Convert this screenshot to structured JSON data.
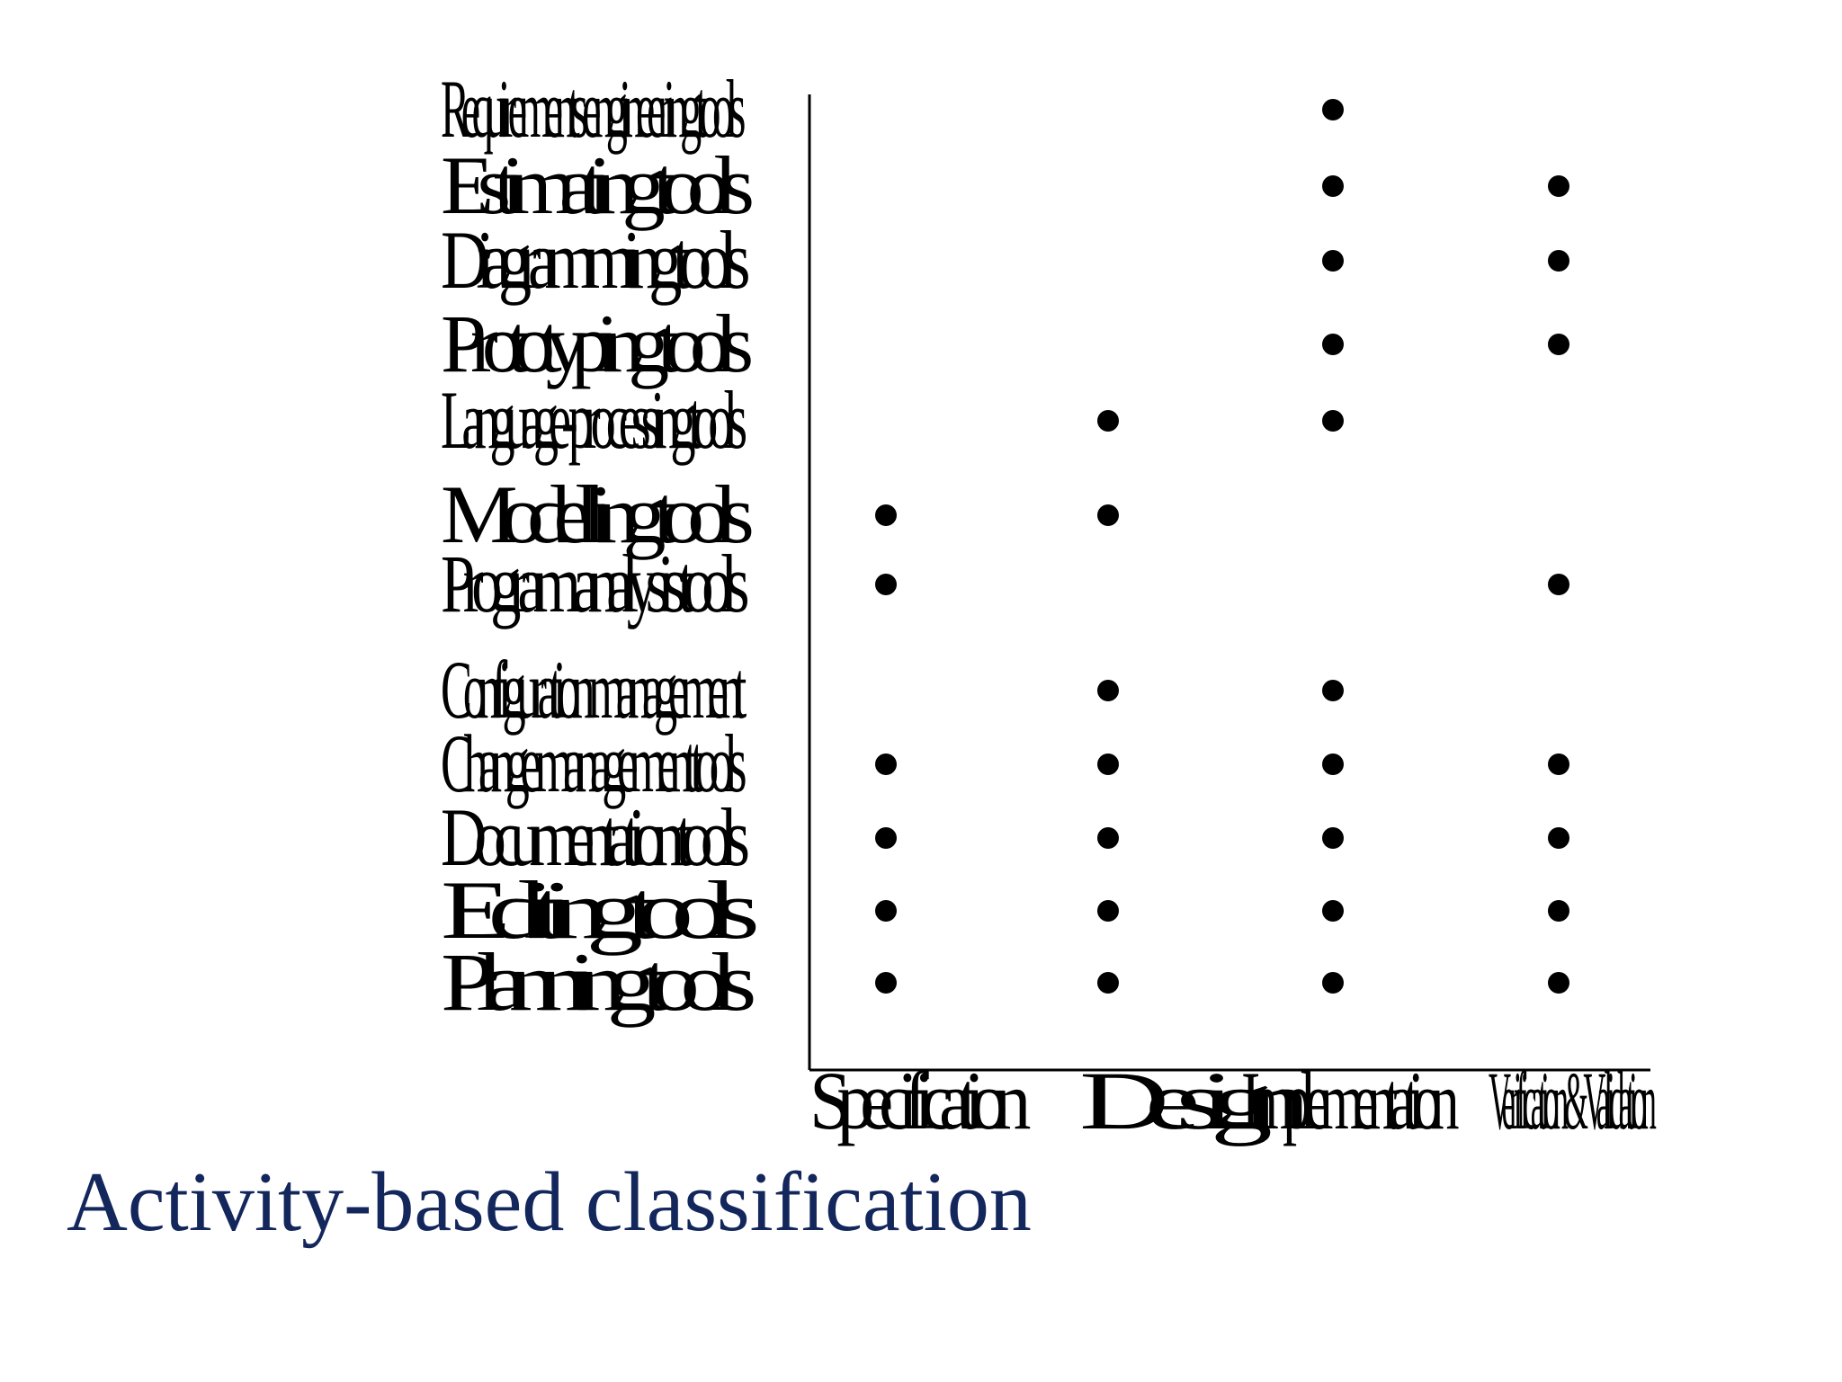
{
  "caption": "Activity-based classification",
  "colors": {
    "caption": "#13275c",
    "marks": "#000000"
  },
  "chart_data": {
    "type": "scatter",
    "title": "",
    "xlabel": "",
    "ylabel": "",
    "grid": false,
    "legend": "none",
    "columns": [
      "Specification",
      "Design",
      "Implementation",
      "Verification & Validation"
    ],
    "rows": [
      "Requirements engineering tools",
      "Estimating tools",
      "Diagramming tools",
      "Prototyping tools",
      "Language-processing tools",
      "Modelling tools",
      "Program analysis tools",
      "Configuration management",
      "Change management tools",
      "Documentation tools",
      "Editing tools",
      "Planning tools"
    ],
    "points": [
      {
        "row": "Requirements engineering tools",
        "column": "Implementation"
      },
      {
        "row": "Estimating tools",
        "column": "Implementation"
      },
      {
        "row": "Estimating tools",
        "column": "Verification & Validation"
      },
      {
        "row": "Diagramming tools",
        "column": "Implementation"
      },
      {
        "row": "Diagramming tools",
        "column": "Verification & Validation"
      },
      {
        "row": "Prototyping tools",
        "column": "Implementation"
      },
      {
        "row": "Prototyping tools",
        "column": "Verification & Validation"
      },
      {
        "row": "Language-processing tools",
        "column": "Design"
      },
      {
        "row": "Language-processing tools",
        "column": "Implementation"
      },
      {
        "row": "Modelling tools",
        "column": "Specification"
      },
      {
        "row": "Modelling tools",
        "column": "Design"
      },
      {
        "row": "Program analysis tools",
        "column": "Specification"
      },
      {
        "row": "Program analysis tools",
        "column": "Verification & Validation"
      },
      {
        "row": "Configuration management",
        "column": "Design"
      },
      {
        "row": "Configuration management",
        "column": "Implementation"
      },
      {
        "row": "Change management tools",
        "column": "Specification"
      },
      {
        "row": "Change management tools",
        "column": "Design"
      },
      {
        "row": "Change management tools",
        "column": "Implementation"
      },
      {
        "row": "Change management tools",
        "column": "Verification & Validation"
      },
      {
        "row": "Documentation tools",
        "column": "Specification"
      },
      {
        "row": "Documentation tools",
        "column": "Design"
      },
      {
        "row": "Documentation tools",
        "column": "Implementation"
      },
      {
        "row": "Documentation tools",
        "column": "Verification & Validation"
      },
      {
        "row": "Editing tools",
        "column": "Specification"
      },
      {
        "row": "Editing tools",
        "column": "Design"
      },
      {
        "row": "Editing tools",
        "column": "Implementation"
      },
      {
        "row": "Editing tools",
        "column": "Verification & Validation"
      },
      {
        "row": "Planning tools",
        "column": "Specification"
      },
      {
        "row": "Planning tools",
        "column": "Design"
      },
      {
        "row": "Planning tools",
        "column": "Implementation"
      },
      {
        "row": "Planning tools",
        "column": "Verification & Validation"
      }
    ]
  }
}
